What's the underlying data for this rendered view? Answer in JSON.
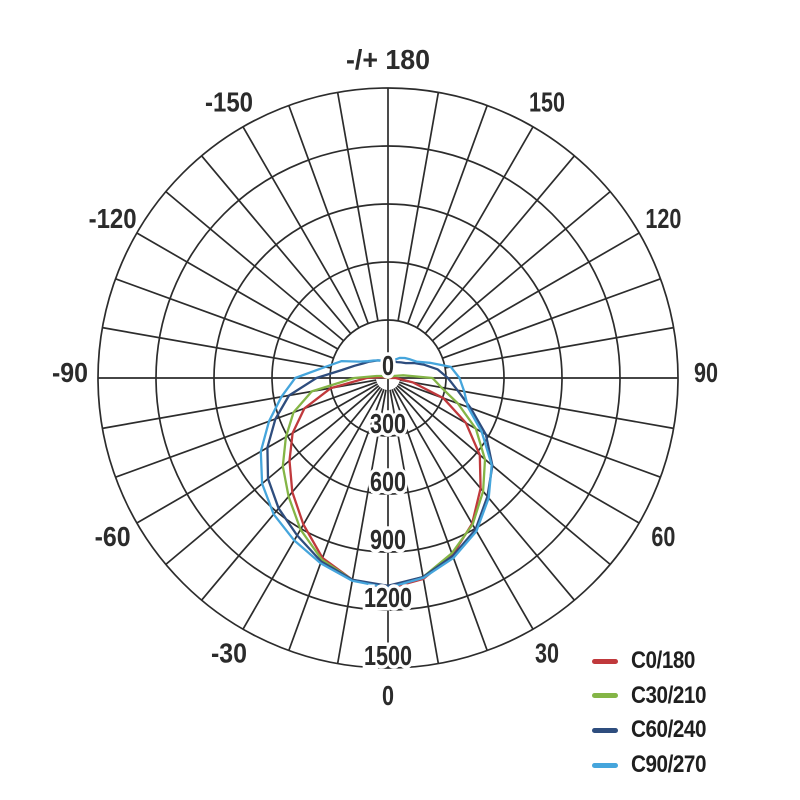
{
  "page": {
    "background": "#ffffff",
    "grid_color": "#2c2c2c",
    "label_color": "#2b2b2b"
  },
  "chart_data": {
    "type": "line",
    "polar": true,
    "title": "",
    "orientation": "0 degrees at bottom (nadir), negative angles left, -/+180 at top",
    "grid": {
      "radial_step": 300,
      "angle_step_deg": 10,
      "labeled_angle_step_deg": 30
    },
    "rmax": 1500,
    "radial_ticks": [
      0,
      300,
      600,
      900,
      1200,
      1500
    ],
    "angle_ticks": [
      {
        "angle": 180,
        "label": "-/+ 180"
      },
      {
        "angle": -150,
        "label": "-150"
      },
      {
        "angle": -120,
        "label": "-120"
      },
      {
        "angle": -90,
        "label": "-90"
      },
      {
        "angle": -60,
        "label": "-60"
      },
      {
        "angle": -30,
        "label": "-30"
      },
      {
        "angle": 0,
        "label": "0"
      },
      {
        "angle": 30,
        "label": "30"
      },
      {
        "angle": 60,
        "label": "60"
      },
      {
        "angle": 90,
        "label": "90"
      },
      {
        "angle": 120,
        "label": "120"
      },
      {
        "angle": 150,
        "label": "150"
      }
    ],
    "angles_deg": [
      -180,
      -170,
      -160,
      -150,
      -140,
      -130,
      -120,
      -110,
      -100,
      -90,
      -80,
      -70,
      -60,
      -50,
      -40,
      -30,
      -20,
      -10,
      0,
      10,
      20,
      30,
      40,
      50,
      60,
      70,
      80,
      90,
      100,
      110,
      120,
      130,
      140,
      150,
      160,
      170,
      180
    ],
    "series": [
      {
        "name": "C0/180",
        "color": "#c0393c",
        "values": [
          0,
          0,
          0,
          0,
          0,
          0,
          0,
          0,
          30,
          110,
          300,
          460,
          570,
          665,
          770,
          875,
          990,
          1060,
          1090,
          1055,
          975,
          870,
          745,
          620,
          465,
          305,
          130,
          40,
          0,
          0,
          0,
          0,
          0,
          0,
          0,
          0,
          0
        ]
      },
      {
        "name": "C30/210",
        "color": "#84b546",
        "values": [
          0,
          0,
          0,
          0,
          0,
          0,
          0,
          30,
          60,
          175,
          400,
          520,
          610,
          710,
          800,
          905,
          1000,
          1060,
          1080,
          1045,
          965,
          875,
          765,
          655,
          525,
          385,
          280,
          230,
          80,
          30,
          0,
          0,
          0,
          0,
          0,
          0,
          0
        ]
      },
      {
        "name": "C60/240",
        "color": "#2e4d7e",
        "values": [
          86,
          90,
          95,
          105,
          115,
          130,
          150,
          185,
          240,
          370,
          520,
          620,
          720,
          810,
          880,
          940,
          1010,
          1060,
          1075,
          1045,
          980,
          905,
          800,
          705,
          585,
          455,
          365,
          310,
          260,
          200,
          155,
          120,
          105,
          95,
          90,
          85,
          86
        ]
      },
      {
        "name": "C90/270",
        "color": "#45a5dc",
        "values": [
          86,
          88,
          95,
          105,
          118,
          135,
          170,
          255,
          330,
          480,
          560,
          655,
          760,
          850,
          920,
          970,
          1020,
          1065,
          1085,
          1050,
          990,
          915,
          810,
          700,
          560,
          440,
          400,
          370,
          330,
          230,
          170,
          150,
          135,
          120,
          100,
          90,
          86
        ]
      }
    ],
    "legend_position": "bottom-right"
  },
  "legend": {
    "items": [
      {
        "label": "C0/180"
      },
      {
        "label": "C30/210"
      },
      {
        "label": "C60/240"
      },
      {
        "label": "C90/270"
      }
    ]
  }
}
